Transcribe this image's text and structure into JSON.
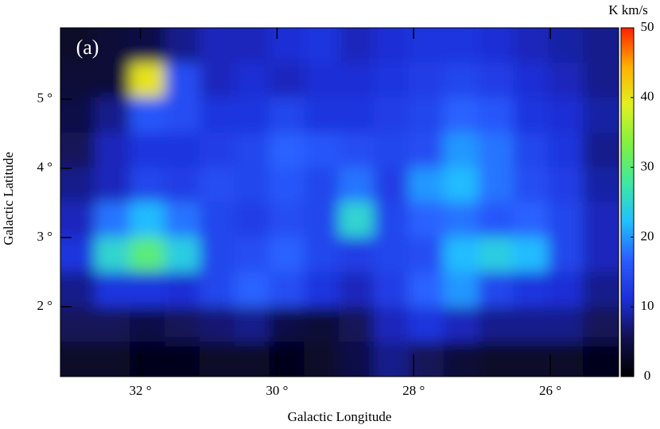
{
  "chart_data": {
    "type": "heatmap",
    "panel_label": "(a)",
    "x_label": "Galactic Longitude",
    "y_label": "Galactic Latitude",
    "colorbar_label": "K km/s",
    "x": [
      32.92,
      32.41,
      31.9,
      31.39,
      30.88,
      30.37,
      29.86,
      29.35,
      28.84,
      28.33,
      27.82,
      27.31,
      26.8,
      26.29,
      25.78,
      25.27
    ],
    "y": [
      5.78,
      5.27,
      4.77,
      4.26,
      3.76,
      3.26,
      2.75,
      2.25,
      1.74,
      1.24
    ],
    "values": [
      [
        3,
        4,
        5,
        8,
        10,
        10,
        11,
        12,
        10,
        11,
        12,
        12,
        11,
        10,
        9,
        8
      ],
      [
        4,
        4,
        40,
        15,
        10,
        11,
        10,
        11,
        11,
        12,
        13,
        14,
        13,
        11,
        10,
        8
      ],
      [
        5,
        8,
        16,
        15,
        12,
        12,
        14,
        12,
        12,
        13,
        14,
        17,
        16,
        12,
        11,
        9
      ],
      [
        6,
        10,
        12,
        12,
        13,
        14,
        17,
        16,
        15,
        14,
        15,
        20,
        18,
        14,
        12,
        8
      ],
      [
        8,
        10,
        14,
        13,
        15,
        14,
        16,
        14,
        18,
        13,
        20,
        22,
        18,
        15,
        13,
        9
      ],
      [
        10,
        18,
        22,
        18,
        14,
        13,
        15,
        14,
        25,
        14,
        17,
        18,
        16,
        17,
        14,
        10
      ],
      [
        12,
        25,
        30,
        24,
        14,
        15,
        17,
        14,
        13,
        14,
        15,
        22,
        24,
        22,
        14,
        10
      ],
      [
        8,
        12,
        12,
        11,
        14,
        17,
        15,
        12,
        10,
        13,
        17,
        20,
        14,
        12,
        11,
        8
      ],
      [
        6,
        6,
        5,
        6,
        7,
        8,
        5,
        4,
        6,
        10,
        12,
        10,
        8,
        8,
        8,
        6
      ],
      [
        3,
        3,
        2,
        2,
        3,
        3,
        2,
        3,
        5,
        8,
        6,
        4,
        3,
        3,
        3,
        2
      ]
    ],
    "xlim": [
      33.17,
      25.0
    ],
    "ylim": [
      0.99,
      6.03
    ],
    "xticks": [
      {
        "value": 32,
        "label": "32 °"
      },
      {
        "value": 30,
        "label": "30 °"
      },
      {
        "value": 28,
        "label": "28 °"
      },
      {
        "value": 26,
        "label": "26 °"
      }
    ],
    "yticks": [
      {
        "value": 2,
        "label": "2 °"
      },
      {
        "value": 3,
        "label": "3 °"
      },
      {
        "value": 4,
        "label": "4 °"
      },
      {
        "value": 5,
        "label": "5 °"
      }
    ],
    "clim": [
      0,
      50
    ],
    "cticks": [
      0,
      10,
      20,
      30,
      40,
      50
    ],
    "colormap": [
      "#000000",
      "#12104e",
      "#1c2ed8",
      "#2a5cff",
      "#20c0ff",
      "#40e8a0",
      "#80f040",
      "#e0f020",
      "#ffb000",
      "#ff2000"
    ]
  }
}
